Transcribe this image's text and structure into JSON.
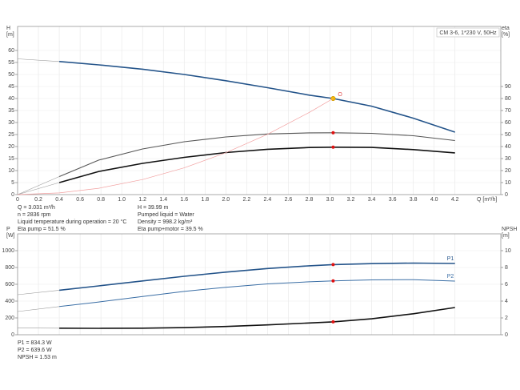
{
  "chart_data": [
    {
      "type": "line",
      "title": "CM 3-6, 1*230 V, 50Hz",
      "ylabel": "H",
      "ylabel_unit": "[m]",
      "y2label": "eta",
      "y2label_unit": "[%]",
      "xlabel": "Q [m³/h]",
      "xlim": [
        0,
        4.64
      ],
      "ylim": [
        0,
        70
      ],
      "y2lim": [
        0,
        140
      ],
      "xticks": [
        0,
        0.2,
        0.4,
        0.6,
        0.8,
        {
          "value": 1,
          "label": "1.0"
        },
        1.2,
        1.4,
        1.6,
        1.8,
        {
          "value": 2,
          "label": "2.0"
        },
        2.2,
        2.4,
        2.6,
        2.8,
        {
          "value": 3,
          "label": "3.0"
        },
        3.2,
        3.4,
        3.6,
        3.8,
        {
          "value": 4,
          "label": "4.0"
        },
        4.2
      ],
      "yticks": [
        0,
        5,
        10,
        15,
        20,
        25,
        30,
        35,
        40,
        45,
        50,
        55,
        60
      ],
      "y2ticks": [
        0,
        10,
        20,
        30,
        40,
        50,
        60,
        70,
        80,
        90
      ],
      "grid": true,
      "show_xtick_labels": true,
      "thick_from": 0.78,
      "operating_x": 3.03,
      "operating_label": "O",
      "x": [
        0,
        0.4,
        0.78,
        1.2,
        1.6,
        2.0,
        2.4,
        2.8,
        3.03,
        3.4,
        3.8,
        4.2
      ],
      "series": [
        {
          "color": "#24548a",
          "width": 1.6,
          "marker_color": "#f2b705",
          "values": [
            56.5,
            55.4,
            54,
            52.2,
            50,
            47.4,
            44.5,
            41.4,
            40,
            36.8,
            31.8,
            26
          ]
        },
        {
          "color": "#555555",
          "width": 1.1,
          "axis": "y2",
          "marker_color": "#e01010",
          "values": [
            0,
            15,
            28.7,
            38,
            44,
            48,
            50.5,
            51.4,
            51.5,
            51,
            49,
            45
          ]
        },
        {
          "color": "#111111",
          "width": 1.6,
          "axis": "y2",
          "marker_color": "#e01010",
          "values": [
            0,
            10,
            19.3,
            26,
            31,
            35,
            37.7,
            39.2,
            39.5,
            39.3,
            37.5,
            34.7
          ]
        },
        {
          "color": "#f2a0a0",
          "width": 0.7,
          "thin": true,
          "values": [
            0,
            0.7,
            2.65,
            6.27,
            11.15,
            17.43,
            25.1,
            34.2,
            40,
            null,
            null,
            null
          ]
        }
      ],
      "info": [
        [
          "Q = 3.031 m³/h",
          "n = 2836 rpm",
          "Liquid temperature during operation = 20 °C",
          "Eta pump = 51.5 %"
        ],
        [
          "H = 39.99 m",
          "Pumped liquid = Water",
          "Density = 998.2 kg/m³",
          "Eta pump+motor = 39.5 %"
        ]
      ]
    },
    {
      "type": "line",
      "ylabel": "P",
      "ylabel_unit": "[W]",
      "y2label": "NPSH",
      "y2label_unit": "[m]",
      "xlim": [
        0,
        4.64
      ],
      "ylim": [
        0,
        1200
      ],
      "y2lim": [
        0,
        12
      ],
      "xticks": [
        0,
        0.2,
        0.4,
        0.6,
        0.8,
        1,
        1.2,
        1.4,
        1.6,
        1.8,
        2,
        2.2,
        2.4,
        2.6,
        2.8,
        3,
        3.2,
        3.4,
        3.6,
        3.8,
        4,
        4.2
      ],
      "yticks": [
        0,
        200,
        400,
        600,
        800,
        1000
      ],
      "y2ticks": [
        0,
        2,
        4,
        6,
        8,
        10
      ],
      "grid": true,
      "show_xtick_labels": false,
      "thick_from": 0.78,
      "operating_x": 3.03,
      "x": [
        0,
        0.4,
        0.78,
        1.2,
        1.6,
        2.0,
        2.4,
        2.8,
        3.03,
        3.4,
        3.8,
        4.2
      ],
      "series": [
        {
          "name": "P1",
          "color": "#24548a",
          "width": 1.6,
          "marker_color": "#e01010",
          "values": [
            476,
            530,
            581,
            640,
            695,
            745,
            788,
            820,
            834,
            846,
            852,
            848
          ]
        },
        {
          "name": "P2",
          "color": "#3a6ea5",
          "width": 1.0,
          "marker_color": "#e01010",
          "values": [
            276,
            335,
            390,
            455,
            515,
            565,
            605,
            630,
            640,
            652,
            655,
            638
          ]
        },
        {
          "color": "#111111",
          "width": 1.6,
          "axis": "y2",
          "marker_color": "#e01010",
          "values": [
            0.8,
            0.78,
            0.76,
            0.78,
            0.85,
            0.98,
            1.17,
            1.4,
            1.53,
            1.9,
            2.5,
            3.24
          ]
        }
      ],
      "info": [
        [
          "P1 = 834.3 W",
          "P2 = 639.6 W",
          "NPSH = 1.53 m"
        ]
      ]
    }
  ]
}
